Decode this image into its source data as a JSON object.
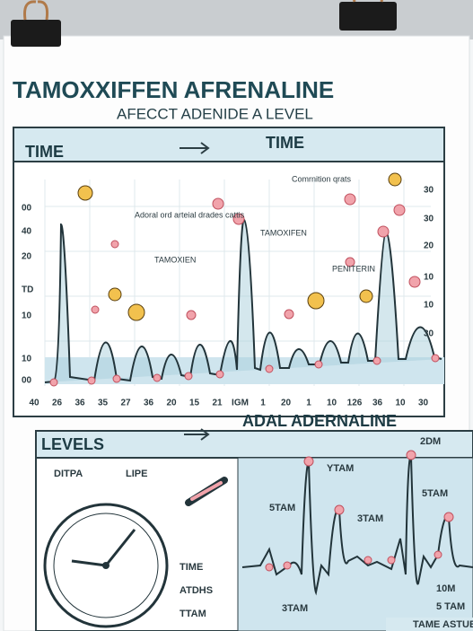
{
  "header": {
    "title": "TAMOXXIFFEN AFRENALINE",
    "subtitle": "AFECCT ADENIDE A LEVEL"
  },
  "top_panel": {
    "heading_left": "TIME",
    "heading_right": "TIME",
    "left_labels": [
      "00",
      "40",
      "20",
      "TD",
      "10",
      "10",
      "00"
    ],
    "right_labels": [
      "30",
      "30",
      "20",
      "10",
      "10",
      "30"
    ],
    "bottom_labels": [
      "40",
      "26",
      "36",
      "35",
      "27",
      "36",
      "20",
      "15",
      "21",
      "IGM",
      "1",
      "20",
      "1",
      "10",
      "126",
      "36",
      "10",
      "30"
    ],
    "annotations": [
      "Adoral ord arteial drades cattis",
      "TAMOXIEN",
      "TAMOXIFEN",
      "Comrnition qrats",
      "PENITERIN"
    ]
  },
  "bottom_panel": {
    "heading_left": "LEVELS",
    "heading_right": "ADAL  ADERNALINE",
    "left_labels": [
      "DITPA",
      "LIPE",
      "TIME",
      "ATDHS",
      "TTAM"
    ],
    "right_labels": [
      "2DM",
      "YTAM",
      "5TAM",
      "5TAM",
      "3TAM",
      "3TAM",
      "10M",
      "5 TAM"
    ]
  },
  "footer": "TAME ASTUE"
}
